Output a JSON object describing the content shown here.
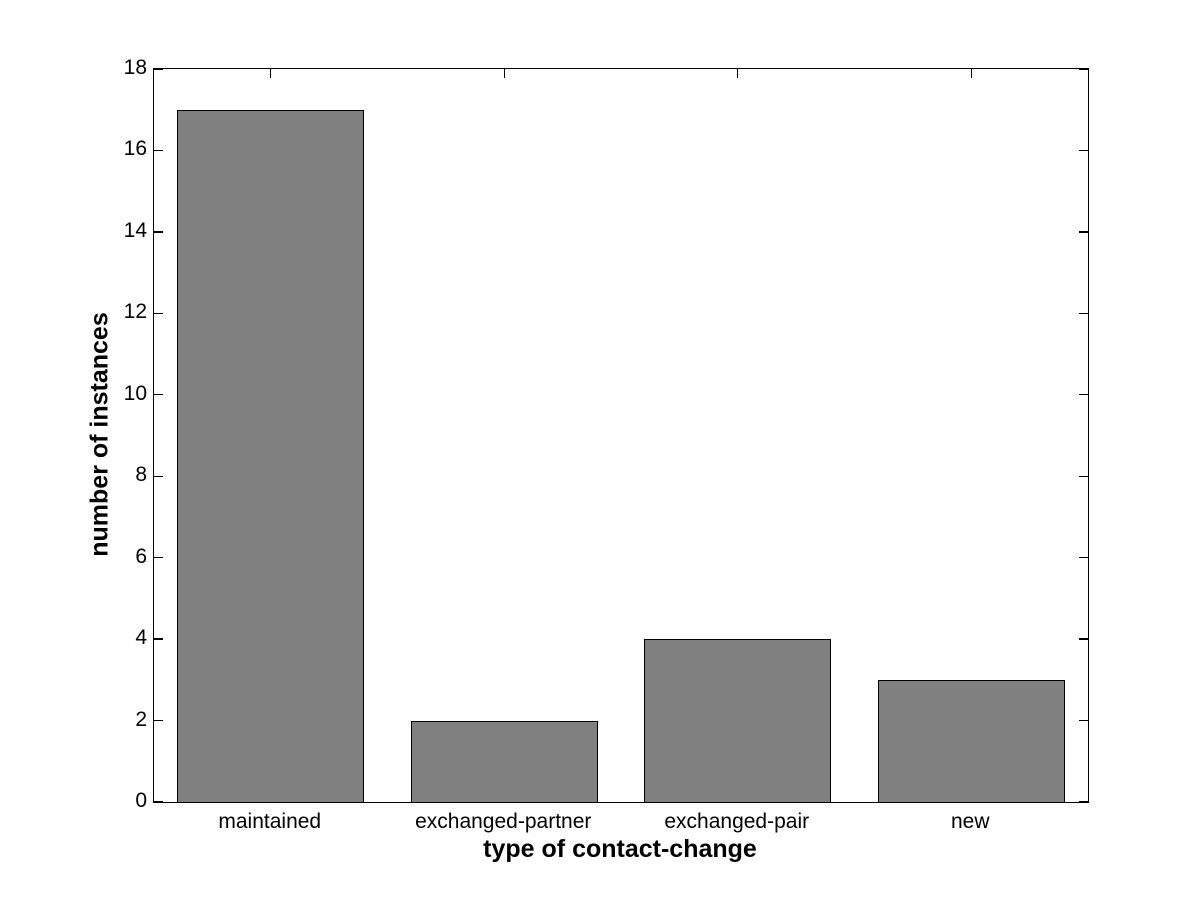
{
  "figure": {
    "background_color": "#ffffff",
    "text_color": "#000000"
  },
  "chart_data": {
    "type": "bar",
    "title": "",
    "categories": [
      "maintained",
      "exchanged-partner",
      "exchanged-pair",
      "new"
    ],
    "values": [
      17,
      2,
      4,
      3
    ],
    "xlabel": "type of contact-change",
    "ylabel": "number of instances",
    "ylim": [
      0,
      18
    ],
    "yticks": [
      0,
      2,
      4,
      6,
      8,
      10,
      12,
      14,
      16,
      18
    ],
    "ytick_labels": [
      "0",
      "2",
      "4",
      "6",
      "8",
      "10",
      "12",
      "14",
      "16",
      "18"
    ],
    "bar_color": "#808080",
    "bar_edge_color": "#000000",
    "axis_color": "#000000",
    "bar_width_fraction": 0.8,
    "grid": false,
    "legend": null
  }
}
